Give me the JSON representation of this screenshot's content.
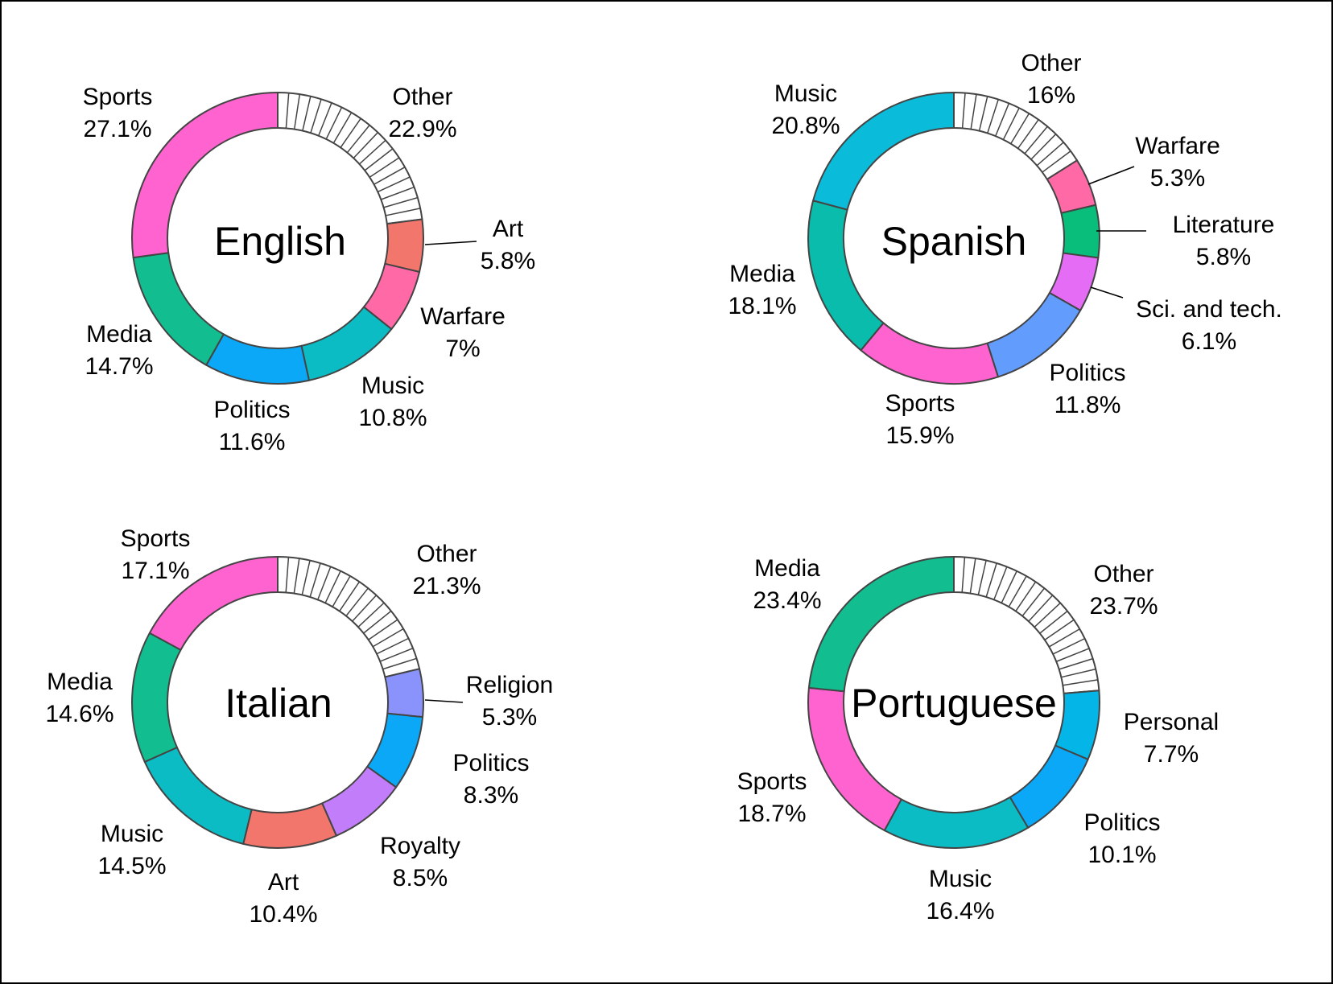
{
  "chart_data": [
    {
      "type": "pie",
      "title": "English",
      "slices": [
        {
          "label": "Other",
          "display_value": "22.9%",
          "value": 22.9,
          "color": "#ffffff",
          "hatched": true
        },
        {
          "label": "Art",
          "display_value": "5.8%",
          "value": 5.8,
          "color": "#f2766c"
        },
        {
          "label": "Warfare",
          "display_value": "7%",
          "value": 7.0,
          "color": "#ff69a6"
        },
        {
          "label": "Music",
          "display_value": "10.8%",
          "value": 10.8,
          "color": "#0bbcc4"
        },
        {
          "label": "Politics",
          "display_value": "11.6%",
          "value": 11.6,
          "color": "#0aa8f7"
        },
        {
          "label": "Media",
          "display_value": "14.7%",
          "value": 14.7,
          "color": "#12bd90"
        },
        {
          "label": "Sports",
          "display_value": "27.1%",
          "value": 27.1,
          "color": "#ff63cf"
        }
      ]
    },
    {
      "type": "pie",
      "title": "Spanish",
      "slices": [
        {
          "label": "Other",
          "display_value": "16%",
          "value": 16.0,
          "color": "#ffffff",
          "hatched": true
        },
        {
          "label": "Warfare",
          "display_value": "5.3%",
          "value": 5.3,
          "color": "#ff69a6"
        },
        {
          "label": "Literature",
          "display_value": "5.8%",
          "value": 5.8,
          "color": "#09bd7a"
        },
        {
          "label": "Sci. and tech.",
          "display_value": "6.1%",
          "value": 6.1,
          "color": "#e56cf4"
        },
        {
          "label": "Politics",
          "display_value": "11.8%",
          "value": 11.8,
          "color": "#629cfd"
        },
        {
          "label": "Sports",
          "display_value": "15.9%",
          "value": 15.9,
          "color": "#ff63cf"
        },
        {
          "label": "Media",
          "display_value": "18.1%",
          "value": 18.1,
          "color": "#09bcac"
        },
        {
          "label": "Music",
          "display_value": "20.8%",
          "value": 20.8,
          "color": "#0bbcda"
        }
      ]
    },
    {
      "type": "pie",
      "title": "Italian",
      "slices": [
        {
          "label": "Other",
          "display_value": "21.3%",
          "value": 21.3,
          "color": "#ffffff",
          "hatched": true
        },
        {
          "label": "Religion",
          "display_value": "5.3%",
          "value": 5.3,
          "color": "#8a93fb"
        },
        {
          "label": "Politics",
          "display_value": "8.3%",
          "value": 8.3,
          "color": "#0aa8f7"
        },
        {
          "label": "Royalty",
          "display_value": "8.5%",
          "value": 8.5,
          "color": "#c27efa"
        },
        {
          "label": "Art",
          "display_value": "10.4%",
          "value": 10.4,
          "color": "#f2766c"
        },
        {
          "label": "Music",
          "display_value": "14.5%",
          "value": 14.5,
          "color": "#0bbcc4"
        },
        {
          "label": "Media",
          "display_value": "14.6%",
          "value": 14.6,
          "color": "#12bd90"
        },
        {
          "label": "Sports",
          "display_value": "17.1%",
          "value": 17.1,
          "color": "#ff63cf"
        }
      ]
    },
    {
      "type": "pie",
      "title": "Portuguese",
      "slices": [
        {
          "label": "Other",
          "display_value": "23.7%",
          "value": 23.7,
          "color": "#ffffff",
          "hatched": true
        },
        {
          "label": "Personal",
          "display_value": "7.7%",
          "value": 7.7,
          "color": "#04b5e8"
        },
        {
          "label": "Politics",
          "display_value": "10.1%",
          "value": 10.1,
          "color": "#0aa8f7"
        },
        {
          "label": "Music",
          "display_value": "16.4%",
          "value": 16.4,
          "color": "#0bbcc4"
        },
        {
          "label": "Sports",
          "display_value": "18.7%",
          "value": 18.7,
          "color": "#ff63cf"
        },
        {
          "label": "Media",
          "display_value": "23.4%",
          "value": 23.4,
          "color": "#12bd90"
        }
      ]
    }
  ]
}
